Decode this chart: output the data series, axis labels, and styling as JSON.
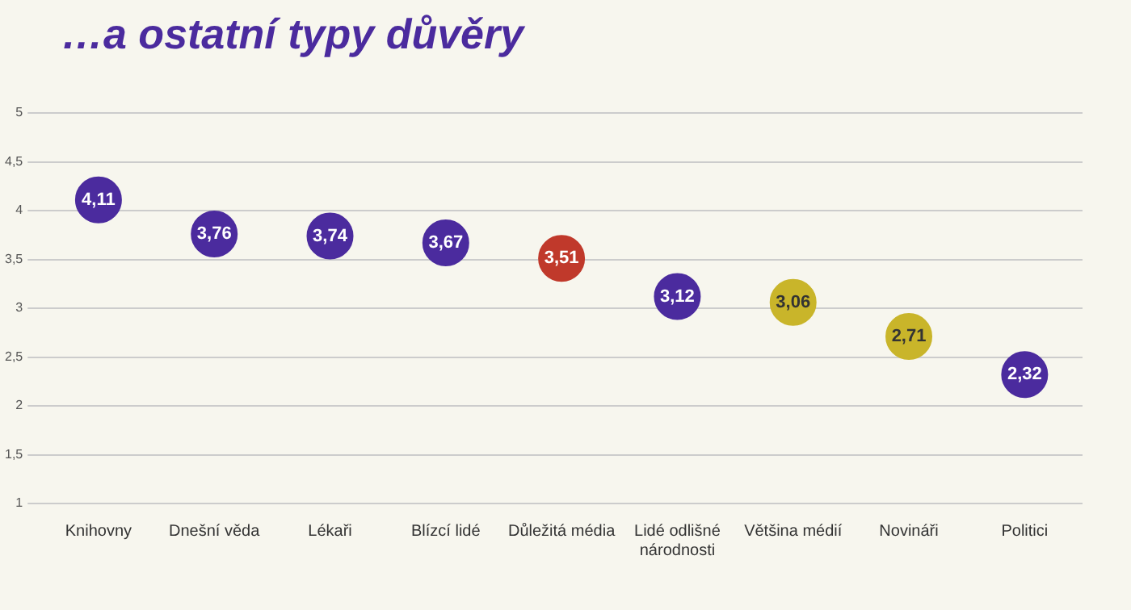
{
  "chart_data": {
    "type": "scatter",
    "title": "…a ostatní typy důvěry",
    "categories": [
      "Knihovny",
      "Dnešní věda",
      "Lékaři",
      "Blízcí lidé",
      "Důležitá média",
      "Lidé odlišné národnosti",
      "Většina médií",
      "Novináři",
      "Politici"
    ],
    "values": [
      4.11,
      3.76,
      3.74,
      3.67,
      3.51,
      3.12,
      3.06,
      2.71,
      2.32
    ],
    "value_labels": [
      "4,11",
      "3,76",
      "3,74",
      "3,67",
      "3,51",
      "3,12",
      "3,06",
      "2,71",
      "2,32"
    ],
    "colors": [
      "#4b2b9e",
      "#4b2b9e",
      "#4b2b9e",
      "#4b2b9e",
      "#c0392b",
      "#4b2b9e",
      "#c9b52a",
      "#c9b52a",
      "#4b2b9e"
    ],
    "ylim": [
      1,
      5
    ],
    "yticks": [
      1,
      {
        "value": 1.5,
        "label": "1,5"
      },
      2,
      {
        "value": 2.5,
        "label": "2,5"
      },
      3,
      {
        "value": 3.5,
        "label": "3,5"
      },
      4,
      {
        "value": 4.5,
        "label": "4,5"
      },
      5
    ],
    "grid": "y",
    "marker": "circle"
  }
}
